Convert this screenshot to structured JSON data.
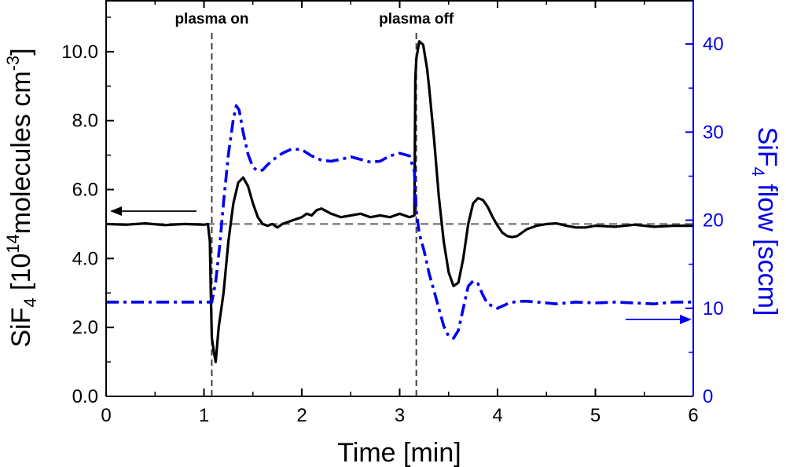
{
  "chart_data": {
    "type": "line",
    "xlabel": "Time [min]",
    "ylabel_left": {
      "main": "SiF",
      "sub": "4",
      "rest": " [10",
      "sup": "14",
      "rest2": "molecules cm",
      "sup2": "-3",
      "end": "]"
    },
    "ylabel_right": {
      "main": "SiF",
      "sub": "4",
      "rest": " flow [sccm]"
    },
    "xlim": [
      0,
      6
    ],
    "ylim_left": [
      0,
      11.5
    ],
    "ylim_right": [
      0,
      45
    ],
    "x_ticks": [
      "0",
      "1",
      "2",
      "3",
      "4",
      "5",
      "6"
    ],
    "y_left_ticks": [
      "0.0",
      "2.0",
      "4.0",
      "6.0",
      "8.0",
      "10.0"
    ],
    "y_right_ticks": [
      "0",
      "10",
      "20",
      "30",
      "40"
    ],
    "annotations": [
      {
        "text": "plasma on",
        "x": 1.08
      },
      {
        "text": "plasma off",
        "x": 3.17
      }
    ],
    "baseline_left": 5.0,
    "colors": {
      "concentration": "#000000",
      "flow": "#0000ee",
      "baseline": "#808080",
      "marker": "#404040",
      "right_axis": "#0000ee"
    },
    "series": [
      {
        "axis": "left",
        "x": [
          0,
          0.2,
          0.4,
          0.6,
          0.8,
          1.0,
          1.04,
          1.06,
          1.07,
          1.08,
          1.1,
          1.12,
          1.15,
          1.2,
          1.25,
          1.3,
          1.35,
          1.4,
          1.45,
          1.5,
          1.55,
          1.6,
          1.65,
          1.7,
          1.75,
          1.8,
          1.85,
          1.9,
          2.0,
          2.05,
          2.1,
          2.15,
          2.2,
          2.3,
          2.4,
          2.5,
          2.6,
          2.7,
          2.8,
          2.9,
          3.0,
          3.1,
          3.15,
          3.16,
          3.17,
          3.2,
          3.24,
          3.28,
          3.3,
          3.35,
          3.4,
          3.45,
          3.5,
          3.55,
          3.6,
          3.65,
          3.7,
          3.75,
          3.8,
          3.85,
          3.9,
          3.95,
          4.0,
          4.05,
          4.1,
          4.15,
          4.2,
          4.25,
          4.3,
          4.4,
          4.5,
          4.6,
          4.7,
          4.8,
          4.9,
          5.0,
          5.2,
          5.4,
          5.6,
          5.8,
          6.0
        ],
        "values": [
          5.0,
          4.98,
          5.02,
          4.97,
          5.0,
          4.98,
          5.0,
          4.5,
          3.0,
          1.7,
          1.3,
          1.0,
          2.0,
          3.0,
          4.5,
          5.6,
          6.2,
          6.35,
          6.1,
          5.6,
          5.2,
          5.0,
          4.95,
          5.0,
          4.9,
          5.0,
          5.05,
          5.1,
          5.2,
          5.3,
          5.25,
          5.4,
          5.45,
          5.3,
          5.2,
          5.25,
          5.3,
          5.2,
          5.25,
          5.2,
          5.3,
          5.2,
          5.25,
          9.2,
          9.8,
          10.3,
          10.2,
          9.5,
          9.0,
          7.5,
          5.8,
          4.5,
          3.6,
          3.2,
          3.3,
          4.0,
          5.0,
          5.6,
          5.75,
          5.7,
          5.5,
          5.2,
          4.95,
          4.75,
          4.65,
          4.62,
          4.65,
          4.75,
          4.85,
          4.95,
          5.0,
          5.02,
          4.95,
          4.9,
          4.9,
          4.95,
          4.92,
          4.98,
          4.92,
          4.95,
          4.95
        ]
      },
      {
        "axis": "right",
        "x": [
          0,
          0.5,
          1.0,
          1.08,
          1.12,
          1.16,
          1.2,
          1.25,
          1.3,
          1.33,
          1.36,
          1.4,
          1.45,
          1.5,
          1.55,
          1.6,
          1.65,
          1.7,
          1.8,
          1.9,
          2.0,
          2.1,
          2.2,
          2.3,
          2.4,
          2.5,
          2.6,
          2.7,
          2.8,
          2.9,
          3.0,
          3.1,
          3.15,
          3.17,
          3.2,
          3.25,
          3.3,
          3.35,
          3.4,
          3.45,
          3.5,
          3.55,
          3.6,
          3.65,
          3.7,
          3.75,
          3.8,
          3.85,
          3.9,
          4.0,
          4.1,
          4.2,
          4.3,
          4.4,
          4.5,
          4.6,
          4.8,
          5.0,
          5.2,
          5.4,
          5.6,
          5.8,
          6.0
        ],
        "values": [
          10.7,
          10.7,
          10.7,
          10.7,
          13.0,
          17.0,
          22.0,
          27.5,
          31.5,
          33.0,
          32.5,
          30.0,
          27.5,
          26.0,
          25.6,
          25.7,
          26.3,
          26.8,
          27.6,
          28.1,
          28.0,
          27.3,
          26.8,
          26.7,
          26.9,
          27.2,
          26.9,
          26.6,
          26.7,
          27.3,
          27.6,
          27.3,
          25.5,
          21.0,
          18.5,
          16.5,
          14.0,
          12.0,
          10.0,
          8.0,
          6.8,
          6.6,
          7.5,
          10.0,
          12.5,
          13.1,
          12.8,
          11.5,
          10.5,
          10.0,
          10.5,
          10.8,
          10.8,
          10.7,
          10.6,
          10.5,
          10.7,
          10.6,
          10.7,
          10.6,
          10.5,
          10.7,
          10.7
        ]
      }
    ]
  }
}
